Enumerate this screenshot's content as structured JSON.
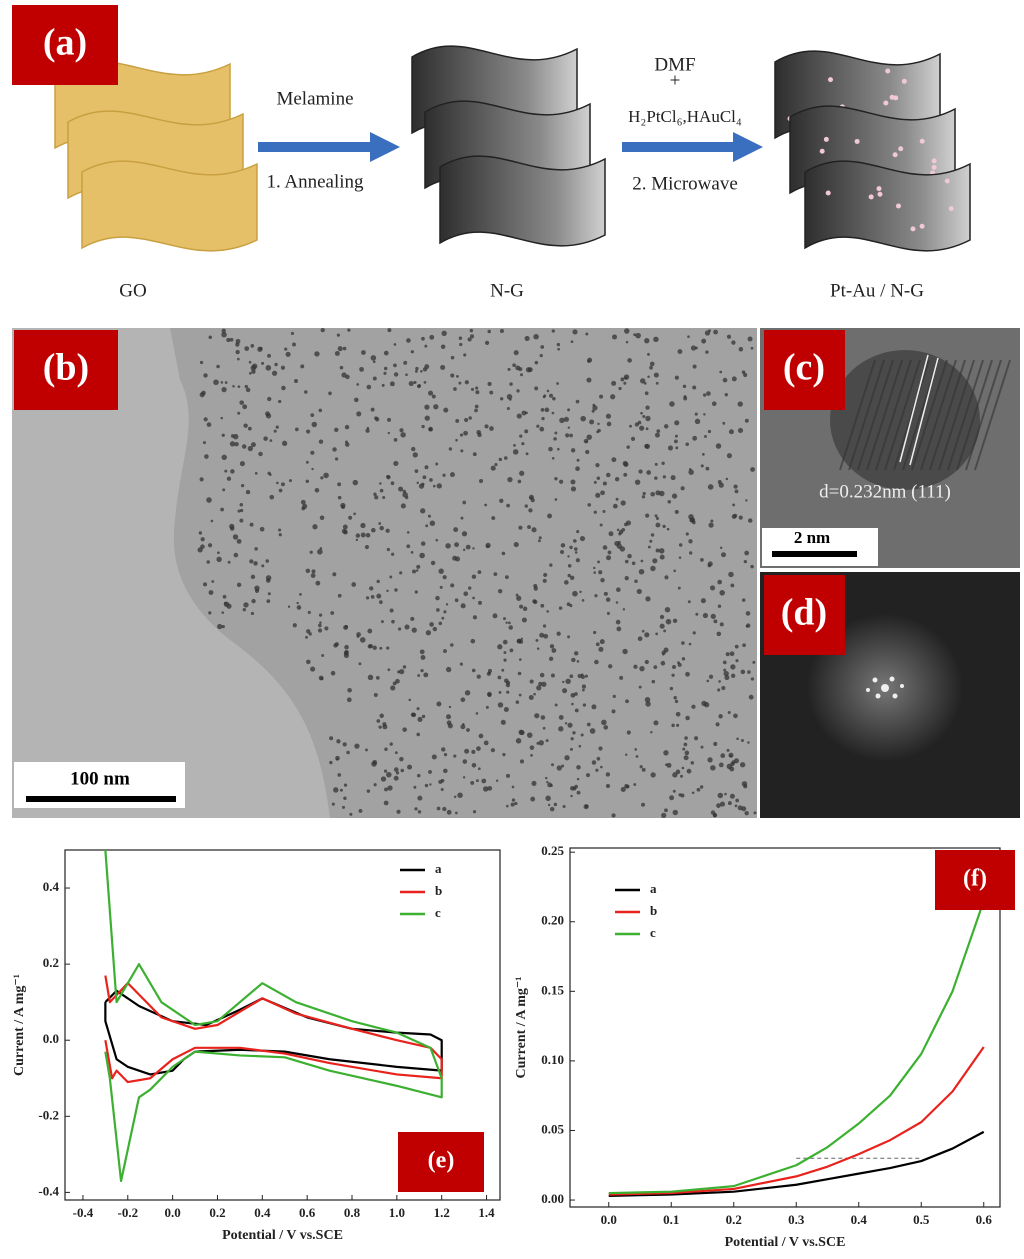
{
  "panel_a": {
    "label": "(a)",
    "step1": {
      "reagent": "Melamine",
      "process": "1. Annealing"
    },
    "step2": {
      "reagent_1": "DMF",
      "plus": "+",
      "reagent_2": "H₂PtCl₆,HAuCl₄",
      "process": "2. Microwave"
    },
    "materials": [
      "GO",
      "N-G",
      "Pt-Au / N-G"
    ]
  },
  "panel_b": {
    "label": "(b)",
    "scale_bar": "100 nm"
  },
  "panel_c": {
    "label": "(c)",
    "scale_bar": "2 nm",
    "annotation": "d=0.232nm (111)"
  },
  "panel_d": {
    "label": "(d)"
  },
  "chart_data": [
    {
      "type": "line",
      "label": "(e)",
      "xlabel": "Potential / V vs.SCE",
      "ylabel": "Current / A mg⁻¹",
      "xlim": [
        -0.48,
        1.46
      ],
      "ylim": [
        -0.42,
        0.5
      ],
      "xticks": [
        -0.4,
        -0.2,
        {
          "value": 0,
          "label": "0.0"
        },
        0.2,
        0.4,
        0.6,
        0.8,
        {
          "value": 1,
          "label": "1.0"
        },
        1.2,
        1.4
      ],
      "yticks": [
        -0.4,
        -0.2,
        {
          "value": 0,
          "label": "0.0"
        },
        0.2,
        0.4
      ],
      "legend": "upper right",
      "series": [
        {
          "name": "a",
          "color": "#000000",
          "x": [
            -0.3,
            -0.25,
            -0.15,
            0,
            0.15,
            0.3,
            0.4,
            0.6,
            0.8,
            1.0,
            1.15,
            1.2,
            1.2,
            1.0,
            0.7,
            0.5,
            0.3,
            0.1,
            0.05,
            0,
            -0.1,
            -0.2,
            -0.25,
            -0.3,
            -0.3
          ],
          "values": [
            0.1,
            0.13,
            0.09,
            0.05,
            0.04,
            0.08,
            0.11,
            0.06,
            0.03,
            0.02,
            0.015,
            0,
            -0.08,
            -0.07,
            -0.05,
            -0.03,
            -0.025,
            -0.03,
            -0.05,
            -0.08,
            -0.09,
            -0.07,
            -0.05,
            0.05,
            0.1
          ]
        },
        {
          "name": "b",
          "color": "#e8221c",
          "x": [
            -0.3,
            -0.28,
            -0.2,
            -0.05,
            0.1,
            0.2,
            0.4,
            0.55,
            0.8,
            1.0,
            1.15,
            1.2,
            1.2,
            1.0,
            0.7,
            0.5,
            0.3,
            0.1,
            0,
            -0.1,
            -0.2,
            -0.25,
            -0.27,
            -0.3
          ],
          "values": [
            0.17,
            0.1,
            0.15,
            0.06,
            0.03,
            0.04,
            0.11,
            0.07,
            0.03,
            0,
            -0.02,
            -0.05,
            -0.1,
            -0.09,
            -0.06,
            -0.035,
            -0.02,
            -0.02,
            -0.05,
            -0.1,
            -0.11,
            -0.08,
            -0.1,
            0
          ]
        },
        {
          "name": "c",
          "color": "#3cb030",
          "x": [
            -0.3,
            -0.25,
            -0.2,
            -0.15,
            -0.05,
            0.1,
            0.2,
            0.4,
            0.55,
            0.8,
            1.0,
            1.15,
            1.2,
            1.2,
            1.0,
            0.7,
            0.5,
            0.3,
            0.1,
            0,
            -0.1,
            -0.15,
            -0.23,
            -0.28,
            -0.3
          ],
          "values": [
            0.5,
            0.1,
            0.15,
            0.2,
            0.1,
            0.04,
            0.05,
            0.15,
            0.1,
            0.05,
            0.02,
            -0.02,
            -0.1,
            -0.15,
            -0.12,
            -0.08,
            -0.045,
            -0.04,
            -0.03,
            -0.07,
            -0.13,
            -0.15,
            -0.37,
            -0.1,
            -0.03
          ]
        }
      ]
    },
    {
      "type": "line",
      "label": "(f)",
      "xlabel": "Potential / V vs.SCE",
      "ylabel": "Current / A mg⁻¹",
      "xlim": [
        -0.062,
        0.626
      ],
      "ylim": [
        -0.005,
        0.253
      ],
      "xticks": [
        {
          "value": 0,
          "label": "0.0"
        },
        0.1,
        0.2,
        0.3,
        0.4,
        0.5,
        0.6
      ],
      "yticks": [
        {
          "value": 0,
          "label": "0.00"
        },
        0.05,
        {
          "value": 0.1,
          "label": "0.10"
        },
        0.15,
        {
          "value": 0.2,
          "label": "0.20"
        },
        0.25
      ],
      "legend": "upper left",
      "hline": {
        "value": 0.03,
        "xrange": [
          0.3,
          0.5
        ]
      },
      "series": [
        {
          "name": "a",
          "color": "#000000",
          "x": [
            0,
            0.1,
            0.2,
            0.3,
            0.35,
            0.4,
            0.45,
            0.5,
            0.55,
            0.6
          ],
          "values": [
            0.003,
            0.004,
            0.006,
            0.011,
            0.015,
            0.019,
            0.023,
            0.028,
            0.037,
            0.049
          ]
        },
        {
          "name": "b",
          "color": "#e8221c",
          "x": [
            0,
            0.1,
            0.2,
            0.3,
            0.35,
            0.4,
            0.45,
            0.5,
            0.55,
            0.6
          ],
          "values": [
            0.004,
            0.005,
            0.008,
            0.017,
            0.024,
            0.033,
            0.043,
            0.056,
            0.078,
            0.11
          ]
        },
        {
          "name": "c",
          "color": "#3cb030",
          "x": [
            0,
            0.1,
            0.2,
            0.3,
            0.35,
            0.4,
            0.45,
            0.5,
            0.55,
            0.6
          ],
          "values": [
            0.005,
            0.006,
            0.01,
            0.025,
            0.038,
            0.055,
            0.075,
            0.105,
            0.15,
            0.215
          ]
        }
      ]
    }
  ]
}
